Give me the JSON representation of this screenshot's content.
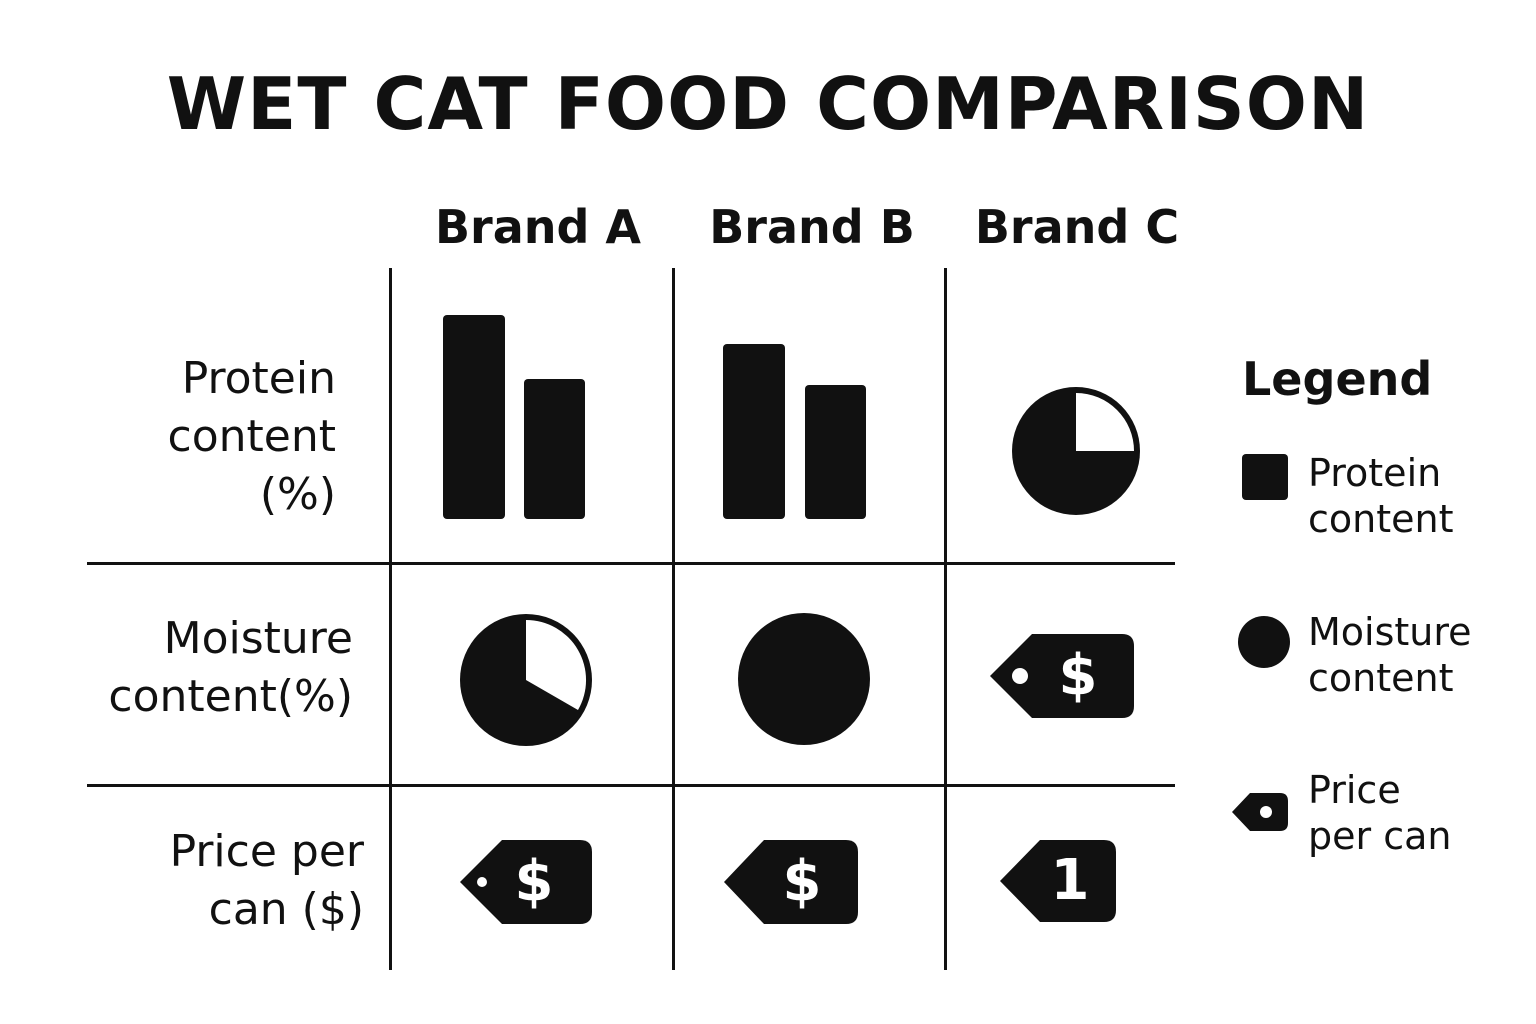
{
  "title": "WET CAT FOOD COMPARISON",
  "columns": [
    "Brand A",
    "Brand B",
    "Brand C"
  ],
  "rows": [
    {
      "label": "Protein\ncontent\n(%)"
    },
    {
      "label": "Moisture\ncontent(%)"
    },
    {
      "label": "Price per\ncan ($)"
    }
  ],
  "cells": {
    "brand_a_price_symbol": "$",
    "brand_b_price_symbol": "$",
    "brand_c_moisture_symbol": "$",
    "brand_c_price_symbol": "1"
  },
  "legend": {
    "title": "Legend",
    "items": [
      {
        "label": "Protein\ncontent",
        "icon": "square-icon"
      },
      {
        "label": "Moisture\ncontent",
        "icon": "circle-icon"
      },
      {
        "label": "Price\nper can",
        "icon": "price-tag-icon"
      }
    ]
  },
  "colors": {
    "ink": "#111111",
    "background": "#ffffff"
  }
}
